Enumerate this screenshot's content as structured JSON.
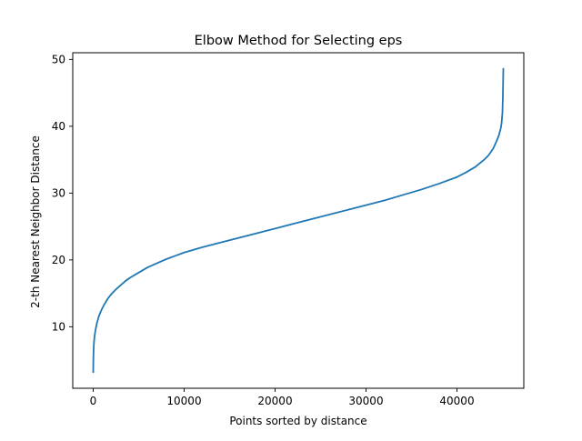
{
  "chart_data": {
    "type": "line",
    "title": "Elbow Method for Selecting eps",
    "xlabel": "Points sorted by distance",
    "ylabel": "2-th Nearest Neighbor Distance",
    "xlim": [
      -2250,
      47350
    ],
    "ylim": [
      0.8,
      51.0
    ],
    "xticks": [
      0,
      10000,
      20000,
      30000,
      40000
    ],
    "xtick_labels": [
      "0",
      "10000",
      "20000",
      "30000",
      "40000"
    ],
    "yticks": [
      10,
      20,
      30,
      40,
      50
    ],
    "ytick_labels": [
      "10",
      "20",
      "30",
      "40",
      "50"
    ],
    "grid": false,
    "colors": {
      "line": "#1f77b4",
      "axes": "#000000",
      "background": "#ffffff"
    },
    "series": [
      {
        "color": "#1f77b4",
        "x": [
          0,
          15,
          40,
          80,
          150,
          250,
          400,
          600,
          900,
          1200,
          1600,
          2000,
          2500,
          3000,
          3500,
          4000,
          5000,
          6000,
          7000,
          8000,
          9000,
          10000,
          12000,
          14000,
          16000,
          18000,
          20000,
          22000,
          24000,
          26000,
          28000,
          30000,
          32000,
          34000,
          36000,
          38000,
          40000,
          41000,
          42000,
          43000,
          43500,
          44000,
          44300,
          44600,
          44800,
          44900,
          45000,
          45050,
          45100
        ],
        "y": [
          3.1,
          5.0,
          6.5,
          7.6,
          8.6,
          9.5,
          10.5,
          11.5,
          12.5,
          13.3,
          14.2,
          14.9,
          15.6,
          16.2,
          16.8,
          17.3,
          18.1,
          18.9,
          19.5,
          20.1,
          20.6,
          21.1,
          21.9,
          22.6,
          23.3,
          24.0,
          24.7,
          25.4,
          26.1,
          26.8,
          27.5,
          28.2,
          28.9,
          29.7,
          30.5,
          31.4,
          32.4,
          33.1,
          33.9,
          35.0,
          35.7,
          36.7,
          37.6,
          38.6,
          39.6,
          40.4,
          42.0,
          44.5,
          48.7
        ]
      }
    ]
  }
}
